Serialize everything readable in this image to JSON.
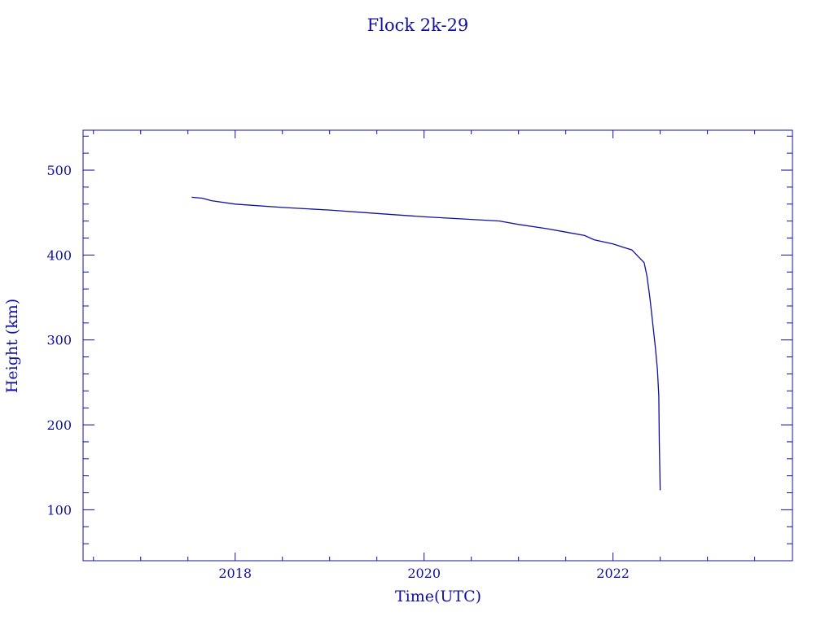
{
  "chart_data": {
    "type": "line",
    "title": "Flock 2k-29",
    "xlabel": "Time(UTC)",
    "ylabel": "Height (km)",
    "xlim": [
      2016.39,
      2023.9
    ],
    "ylim": [
      40,
      547
    ],
    "x_ticks": [
      2018,
      2020,
      2022
    ],
    "x_tick_labels": [
      "2018",
      "2020",
      "2022"
    ],
    "y_ticks": [
      100,
      200,
      300,
      400,
      500
    ],
    "y_tick_labels": [
      "100",
      "200",
      "300",
      "400",
      "500"
    ],
    "grid": false,
    "color": "#1010a0",
    "series": [
      {
        "x": [
          2017.54,
          2017.65,
          2017.75,
          2018.0,
          2018.5,
          2019.0,
          2019.5,
          2020.0,
          2020.5,
          2020.8,
          2021.0,
          2021.3,
          2021.5,
          2021.7,
          2021.8,
          2022.0,
          2022.2,
          2022.33,
          2022.36,
          2022.39,
          2022.42,
          2022.45,
          2022.47,
          2022.485,
          2022.49,
          2022.5
        ],
        "y": [
          468,
          467,
          464,
          460,
          456,
          453,
          449,
          445,
          442,
          440,
          436,
          431,
          427,
          423,
          418,
          413,
          406,
          391,
          375,
          350,
          320,
          290,
          265,
          234,
          180,
          123
        ]
      }
    ]
  }
}
